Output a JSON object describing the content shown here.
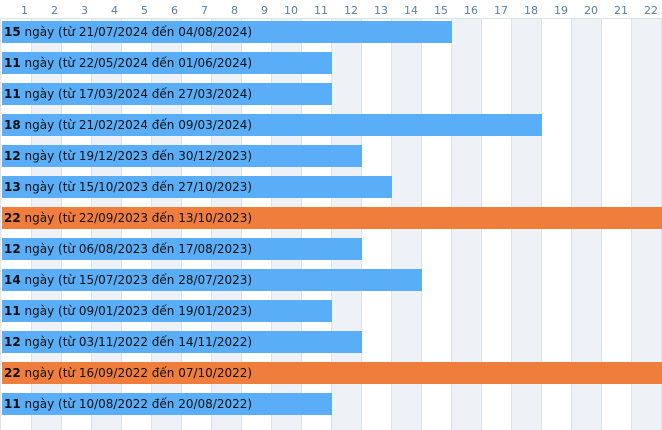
{
  "chart_data": {
    "type": "bar",
    "orientation": "horizontal",
    "x_ticks": [
      "1",
      "2",
      "3",
      "4",
      "5",
      "6",
      "7",
      "8",
      "9",
      "10",
      "11",
      "12",
      "13",
      "14",
      "15",
      "16",
      "17",
      "18",
      "19",
      "20",
      "21",
      "22"
    ],
    "xlim": [
      0,
      22
    ],
    "grid": true,
    "unit_label": "ngày",
    "from_label": "từ",
    "to_label": "đến",
    "colors": {
      "normal": "#5aaef7",
      "highlight": "#ef7d3b",
      "grid": "#dde3ea",
      "tick": "#5b7fa6",
      "band": "#eef2f6"
    },
    "bars": [
      {
        "value": 15,
        "start": "21/07/2024",
        "end": "04/08/2024",
        "highlight": false
      },
      {
        "value": 11,
        "start": "22/05/2024",
        "end": "01/06/2024",
        "highlight": false
      },
      {
        "value": 11,
        "start": "17/03/2024",
        "end": "27/03/2024",
        "highlight": false
      },
      {
        "value": 18,
        "start": "21/02/2024",
        "end": "09/03/2024",
        "highlight": false
      },
      {
        "value": 12,
        "start": "19/12/2023",
        "end": "30/12/2023",
        "highlight": false
      },
      {
        "value": 13,
        "start": "15/10/2023",
        "end": "27/10/2023",
        "highlight": false
      },
      {
        "value": 22,
        "start": "22/09/2023",
        "end": "13/10/2023",
        "highlight": true
      },
      {
        "value": 12,
        "start": "06/08/2023",
        "end": "17/08/2023",
        "highlight": false
      },
      {
        "value": 14,
        "start": "15/07/2023",
        "end": "28/07/2023",
        "highlight": false
      },
      {
        "value": 11,
        "start": "09/01/2023",
        "end": "19/01/2023",
        "highlight": false
      },
      {
        "value": 12,
        "start": "03/11/2022",
        "end": "14/11/2022",
        "highlight": false
      },
      {
        "value": 22,
        "start": "16/09/2022",
        "end": "07/10/2022",
        "highlight": true
      },
      {
        "value": 11,
        "start": "10/08/2022",
        "end": "20/08/2022",
        "highlight": false
      }
    ]
  }
}
